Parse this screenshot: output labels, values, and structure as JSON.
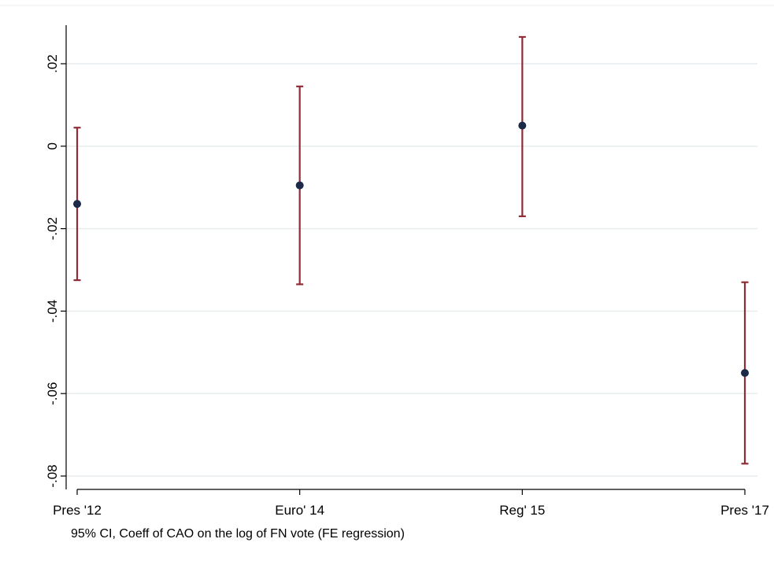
{
  "chart_data": {
    "type": "scatter",
    "title": "",
    "xlabel": "",
    "ylabel": "",
    "note": "95% CI, Coeff of CAO on the log of FN vote (FE regression)",
    "categories": [
      "Pres '12",
      "Euro' 14",
      "Reg' 15",
      "Pres '17"
    ],
    "series": [
      {
        "values": [
          -0.014,
          -0.0095,
          0.005,
          -0.055
        ],
        "ci_low": [
          -0.0325,
          -0.0335,
          -0.017,
          -0.077
        ],
        "ci_high": [
          0.0045,
          0.0145,
          0.0265,
          -0.033
        ]
      }
    ],
    "ylim": [
      -0.08,
      0.02
    ],
    "yticks": [
      0.02,
      0,
      -0.02,
      -0.04,
      -0.06,
      -0.08
    ],
    "ytick_labels": [
      ".02",
      "0",
      "-.02",
      "-.04",
      "-.06",
      "-.08"
    ],
    "grid": true,
    "colors": {
      "point": "#1a2a48",
      "ci": "#8f2c36",
      "grid": "#e6ebee"
    }
  }
}
